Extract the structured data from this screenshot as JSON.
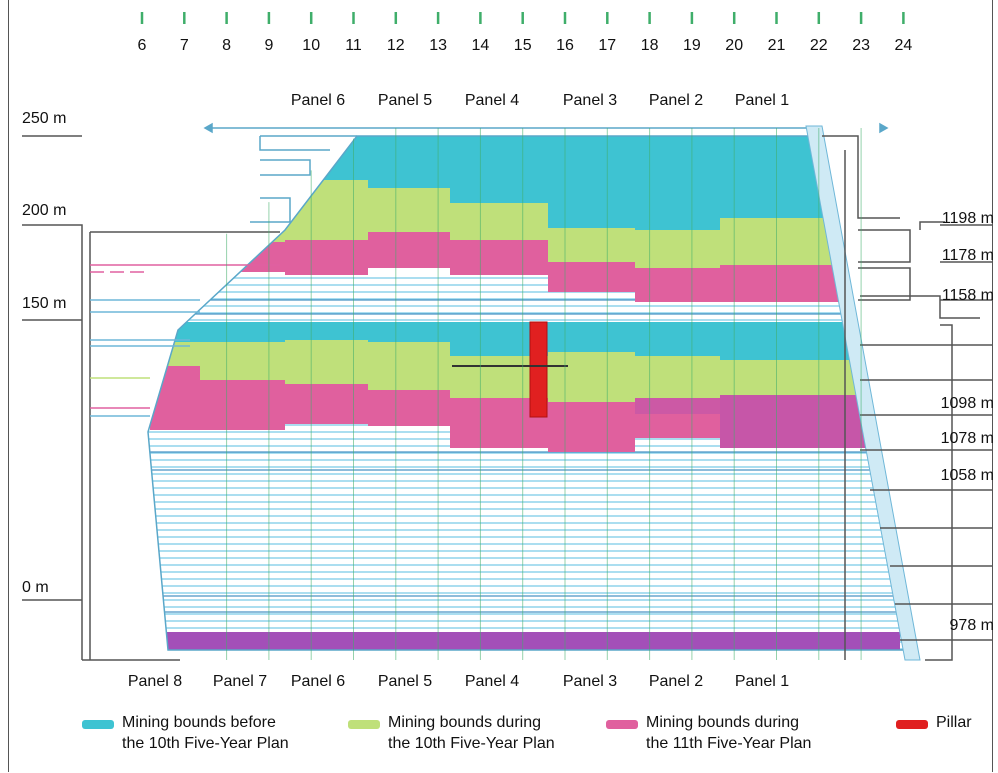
{
  "diagram": {
    "columns": [
      "6",
      "7",
      "8",
      "9",
      "10",
      "11",
      "12",
      "13",
      "14",
      "15",
      "16",
      "17",
      "18",
      "19",
      "20",
      "21",
      "22",
      "23",
      "24"
    ],
    "panels_top": [
      "Panel 6",
      "Panel 5",
      "Panel 4",
      "Panel 3",
      "Panel 2",
      "Panel 1"
    ],
    "panels_bottom": [
      "Panel 8",
      "Panel 7",
      "Panel 6",
      "Panel 5",
      "Panel 4",
      "Panel 3",
      "Panel 2",
      "Panel 1"
    ],
    "heights_left": [
      "250 m",
      "200 m",
      "150 m",
      "0 m"
    ],
    "levels_right": [
      "1198 m",
      "1178 m",
      "1158 m",
      "1098 m",
      "1078 m",
      "1058 m",
      "978 m"
    ],
    "colors": {
      "before_10th": "#3ec3d2",
      "during_10th": "#bfe07a",
      "during_11th": "#e0609e",
      "pillar": "#e02020",
      "hatch": "#8fd4ec",
      "outline": "#555555",
      "grid_green": "#3fae6a"
    }
  },
  "legend": [
    {
      "label": "Mining bounds before\nthe 10th Five-Year Plan",
      "color": "#3ec3d2"
    },
    {
      "label": "Mining bounds during\nthe 10th Five-Year Plan",
      "color": "#bfe07a"
    },
    {
      "label": "Mining bounds during\nthe 11th Five-Year Plan",
      "color": "#e0609e"
    },
    {
      "label": "Pillar",
      "color": "#e02020"
    }
  ]
}
